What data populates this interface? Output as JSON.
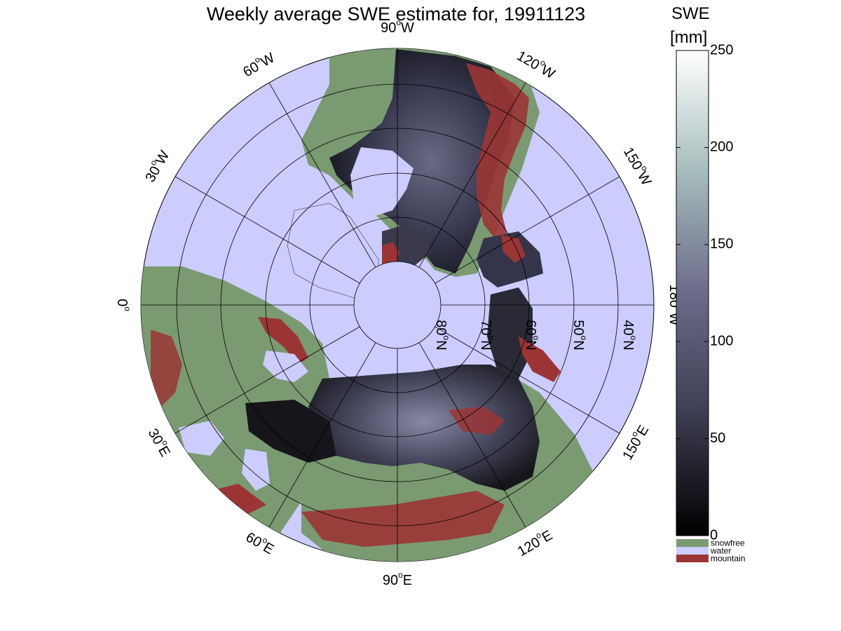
{
  "title": "Weekly average SWE estimate for, 19911123",
  "colorbar": {
    "label_line1": "SWE",
    "label_line2": "[mm]",
    "ticks": [
      "250",
      "200",
      "150",
      "100",
      "50",
      "0"
    ],
    "range": [
      0,
      250
    ],
    "categories": [
      {
        "label": "snowfree",
        "color": "#7a9a72"
      },
      {
        "label": "water",
        "color": "#ccccff"
      },
      {
        "label": "mountain",
        "color": "#9b3535"
      }
    ]
  },
  "map": {
    "projection": "north-polar-stereographic",
    "lat_circles": [
      {
        "label": "80",
        "sup": "o",
        "suffix": "N"
      },
      {
        "label": "70",
        "sup": "o",
        "suffix": "N"
      },
      {
        "label": "60",
        "sup": "o",
        "suffix": "N"
      },
      {
        "label": "50",
        "sup": "o",
        "suffix": "N"
      },
      {
        "label": "40",
        "sup": "o",
        "suffix": "N"
      }
    ],
    "meridians": [
      {
        "label": "90",
        "sup": "o",
        "suffix": "W"
      },
      {
        "label": "120",
        "sup": "o",
        "suffix": "W"
      },
      {
        "label": "150",
        "sup": "o",
        "suffix": "W"
      },
      {
        "label": "180",
        "sup": "o",
        "suffix": "W"
      },
      {
        "label": "150",
        "sup": "o",
        "suffix": "E"
      },
      {
        "label": "120",
        "sup": "o",
        "suffix": "E"
      },
      {
        "label": "90",
        "sup": "o",
        "suffix": "E"
      },
      {
        "label": "60",
        "sup": "o",
        "suffix": "E"
      },
      {
        "label": "30",
        "sup": "o",
        "suffix": "E"
      },
      {
        "label": "0",
        "sup": "o",
        "suffix": ""
      },
      {
        "label": "30",
        "sup": "o",
        "suffix": "W"
      },
      {
        "label": "60",
        "sup": "o",
        "suffix": "W"
      }
    ],
    "colors": {
      "water": "#ccccff",
      "snowfree": "#7a9a72",
      "mountain": "#9b3535",
      "snow_low": "#141418",
      "snow_mid": "#3c3c50",
      "snow_high": "#8a8aa8"
    }
  }
}
